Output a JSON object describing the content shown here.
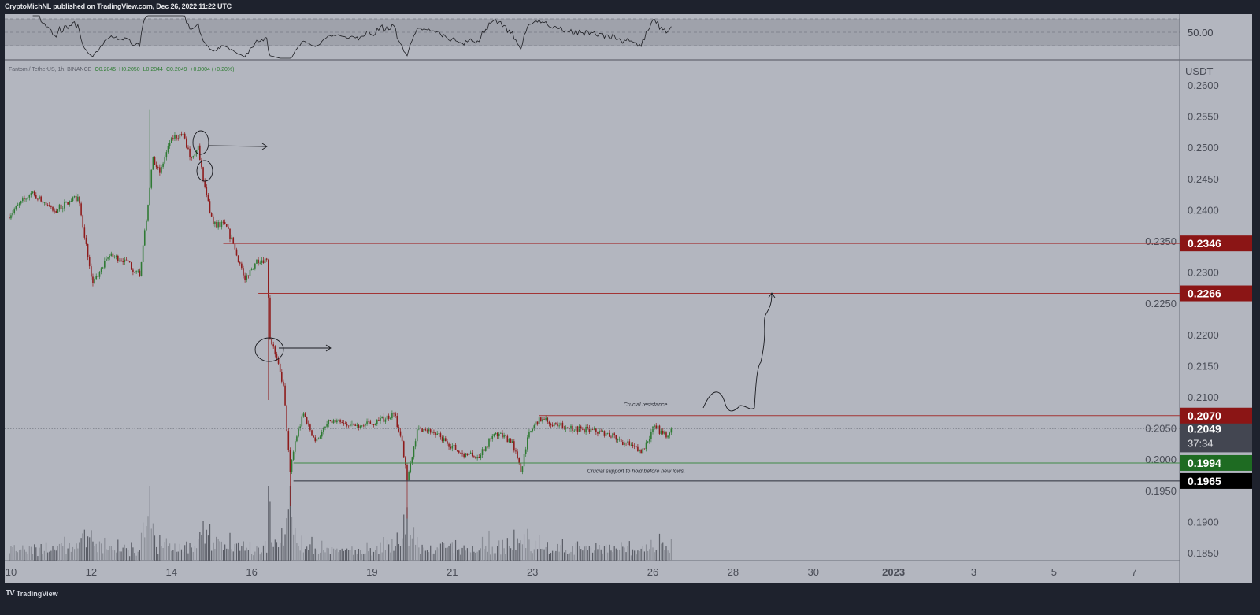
{
  "header": {
    "published": "CryptoMichNL published on TradingView.com, Dec 26, 2022 11:22 UTC"
  },
  "legend": {
    "symbol": "Fantom / TetherUS, 1h, BINANCE",
    "open": "O0.2045",
    "high": "H0.2050",
    "low": "L0.2044",
    "close": "C0.2049",
    "change": "+0.0004 (+0.20%)"
  },
  "rsi": {
    "label": "50.00",
    "upper": 70,
    "mid": 50,
    "lower": 30,
    "period": 14
  },
  "colors": {
    "background": "#b3b6bf",
    "frame": "#1e222d",
    "up": "#2f7a34",
    "down": "#8e1b1b",
    "resistance": "#a33434",
    "support": "#2e7d32",
    "low_line": "#2a2e39"
  },
  "logo": {
    "text": "TradingView"
  },
  "chart_data": {
    "type": "candlestick",
    "interval": "1h",
    "currency": "USDT",
    "ylim": [
      0.1835,
      0.264
    ],
    "y_ticks": [
      "0.2600",
      "0.2550",
      "0.2500",
      "0.2450",
      "0.2400",
      "0.2350",
      "0.2300",
      "0.2250",
      "0.2200",
      "0.2150",
      "0.2100",
      "0.2050",
      "0.2000",
      "0.1950",
      "0.1900",
      "0.1850"
    ],
    "x_ticks": [
      {
        "t": "2022-12-10T00:00",
        "label": "10"
      },
      {
        "t": "2022-12-12T00:00",
        "label": "12"
      },
      {
        "t": "2022-12-14T00:00",
        "label": "14"
      },
      {
        "t": "2022-12-16T00:00",
        "label": "16"
      },
      {
        "t": "2022-12-19T00:00",
        "label": "19"
      },
      {
        "t": "2022-12-21T00:00",
        "label": "21"
      },
      {
        "t": "2022-12-23T00:00",
        "label": "23"
      },
      {
        "t": "2022-12-26T00:00",
        "label": "26"
      },
      {
        "t": "2022-12-28T00:00",
        "label": "28"
      },
      {
        "t": "2022-12-30T00:00",
        "label": "30"
      },
      {
        "t": "2023-01-01T00:00",
        "label": "2023",
        "bold": true
      },
      {
        "t": "2023-01-03T00:00",
        "label": "3"
      },
      {
        "t": "2023-01-05T00:00",
        "label": "5"
      },
      {
        "t": "2023-01-07T00:00",
        "label": "7"
      }
    ],
    "close_path": [
      [
        "2022-12-09T22:00",
        0.2389
      ],
      [
        "2022-12-10T12:00",
        0.2427
      ],
      [
        "2022-12-11T02:00",
        0.2398
      ],
      [
        "2022-12-11T16:00",
        0.2421
      ],
      [
        "2022-12-11T21:00",
        0.2345
      ],
      [
        "2022-12-12T01:00",
        0.2282
      ],
      [
        "2022-12-12T11:00",
        0.2326
      ],
      [
        "2022-12-12T20:00",
        0.232
      ],
      [
        "2022-12-13T05:00",
        0.2294
      ],
      [
        "2022-12-13T10:00",
        0.2408
      ],
      [
        "2022-12-13T13:00",
        0.2484
      ],
      [
        "2022-12-13T17:00",
        0.2459
      ],
      [
        "2022-12-14T00:00",
        0.2515
      ],
      [
        "2022-12-14T07:00",
        0.2522
      ],
      [
        "2022-12-14T11:00",
        0.2484
      ],
      [
        "2022-12-14T16:00",
        0.2503
      ],
      [
        "2022-12-14T19:00",
        0.2446
      ],
      [
        "2022-12-15T01:00",
        0.2377
      ],
      [
        "2022-12-15T08:00",
        0.2377
      ],
      [
        "2022-12-15T13:00",
        0.2345
      ],
      [
        "2022-12-15T20:00",
        0.2288
      ],
      [
        "2022-12-16T03:00",
        0.232
      ],
      [
        "2022-12-16T09:00",
        0.232
      ],
      [
        "2022-12-16T11:00",
        0.2193
      ],
      [
        "2022-12-16T14:00",
        0.2168
      ],
      [
        "2022-12-16T19:00",
        0.2118
      ],
      [
        "2022-12-16T23:00",
        0.1979
      ],
      [
        "2022-12-17T02:00",
        0.2029
      ],
      [
        "2022-12-17T07:00",
        0.2073
      ],
      [
        "2022-12-17T14:00",
        0.2029
      ],
      [
        "2022-12-17T23:00",
        0.2061
      ],
      [
        "2022-12-18T09:00",
        0.2054
      ],
      [
        "2022-12-18T18:00",
        0.2054
      ],
      [
        "2022-12-19T04:00",
        0.2061
      ],
      [
        "2022-12-19T13:00",
        0.2073
      ],
      [
        "2022-12-19T18:00",
        0.2029
      ],
      [
        "2022-12-19T21:00",
        0.1966
      ],
      [
        "2022-12-20T03:00",
        0.2048
      ],
      [
        "2022-12-20T10:00",
        0.2048
      ],
      [
        "2022-12-20T20:00",
        0.2029
      ],
      [
        "2022-12-21T05:00",
        0.201
      ],
      [
        "2022-12-21T15:00",
        0.2004
      ],
      [
        "2022-12-22T02:00",
        0.2042
      ],
      [
        "2022-12-22T12:00",
        0.2029
      ],
      [
        "2022-12-22T17:00",
        0.1979
      ],
      [
        "2022-12-22T21:00",
        0.2035
      ],
      [
        "2022-12-23T04:00",
        0.2067
      ],
      [
        "2022-12-23T16:00",
        0.2054
      ],
      [
        "2022-12-24T06:00",
        0.2048
      ],
      [
        "2022-12-24T20:00",
        0.2042
      ],
      [
        "2022-12-25T10:00",
        0.2023
      ],
      [
        "2022-12-25T17:00",
        0.201
      ],
      [
        "2022-12-26T01:00",
        0.2054
      ],
      [
        "2022-12-26T08:00",
        0.2035
      ],
      [
        "2022-12-26T11:00",
        0.2049
      ]
    ],
    "extremes": [
      {
        "t": "2022-12-13T11:00",
        "high": 0.256
      },
      {
        "t": "2022-12-16T23:00",
        "low": 0.1925
      },
      {
        "t": "2022-12-19T21:00",
        "low": 0.1905
      },
      {
        "t": "2022-12-16T10:00",
        "low": 0.2095
      }
    ],
    "levels": [
      {
        "price": 0.2346,
        "label": "0.2346",
        "kind": "resistance",
        "from": "2022-12-15T07:00"
      },
      {
        "price": 0.2266,
        "label": "0.2266",
        "kind": "resistance",
        "from": "2022-12-16T04:00"
      },
      {
        "price": 0.207,
        "label": "0.2070",
        "kind": "resistance",
        "from": "2022-12-23T04:00"
      },
      {
        "price": 0.1994,
        "label": "0.1994",
        "kind": "support",
        "from": "2022-12-17T01:00"
      },
      {
        "price": 0.1965,
        "label": "0.1965",
        "kind": "low_line",
        "from": "2022-12-17T01:00"
      }
    ],
    "last_price": {
      "price": 0.2049,
      "label": "0.2049",
      "countdown": "37:34"
    },
    "annotations": [
      {
        "text": "Crucial resistance.",
        "t": "2022-12-25T20:00",
        "price": 0.2085
      },
      {
        "text": "Crucial support to hold before new lows.",
        "t": "2022-12-25T14:00",
        "price": 0.1978
      }
    ]
  }
}
